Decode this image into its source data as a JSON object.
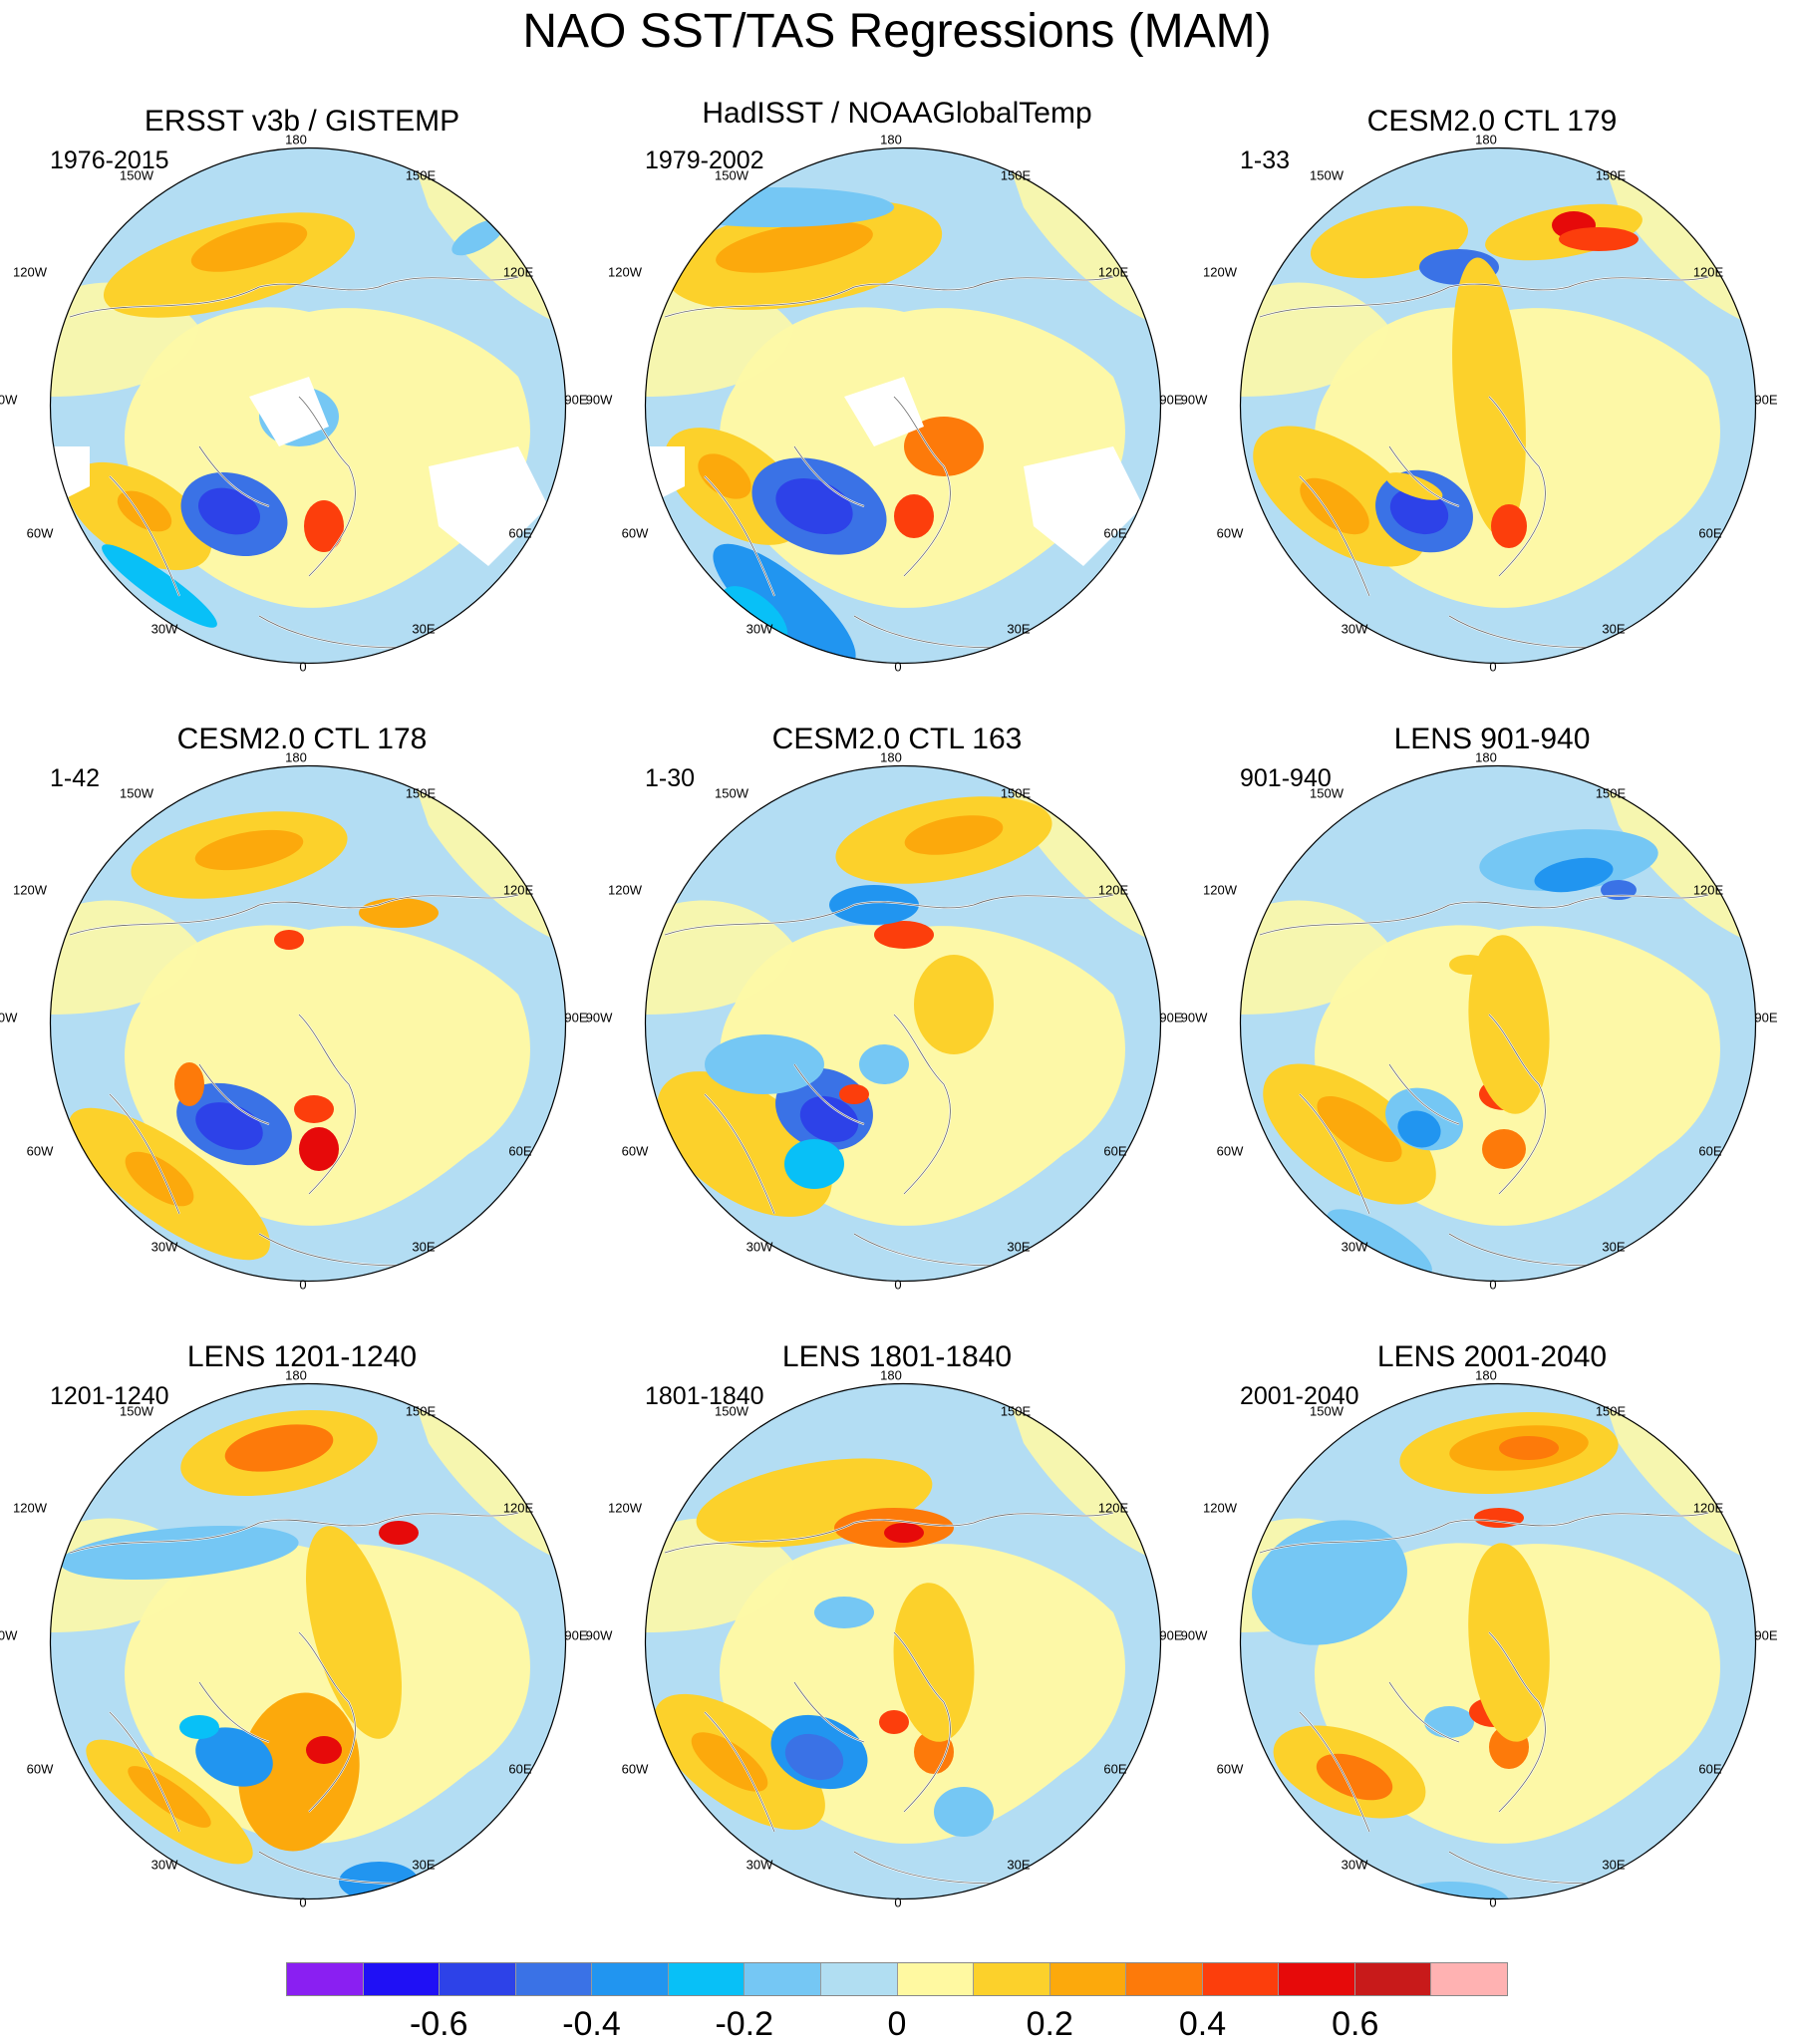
{
  "title": "NAO SST/TAS Regressions (MAM)",
  "chart_data": {
    "type": "heatmap",
    "projection": "polar stereographic (north pole)",
    "variable": "SST/TAS regression onto NAO",
    "season": "MAM",
    "longitude_labels": [
      "180",
      "150E",
      "120E",
      "90E",
      "60E",
      "30E",
      "0",
      "30W",
      "60W",
      "90W",
      "120W",
      "150W"
    ],
    "panels": [
      {
        "title": "ERSST v3b / GISTEMP",
        "period": "1976-2015",
        "missing_data": true
      },
      {
        "title": "HadISST / NOAAGlobalTemp",
        "period": "1979-2002",
        "missing_data": true
      },
      {
        "title": "CESM2.0 CTL 179",
        "period": "1-33",
        "missing_data": false
      },
      {
        "title": "CESM2.0 CTL 178",
        "period": "1-42",
        "missing_data": false
      },
      {
        "title": "CESM2.0 CTL 163",
        "period": "1-30",
        "missing_data": false
      },
      {
        "title": "LENS 901-940",
        "period": "901-940",
        "missing_data": false
      },
      {
        "title": "LENS 1201-1240",
        "period": "1201-1240",
        "missing_data": false
      },
      {
        "title": "LENS 1801-1840",
        "period": "1801-1840",
        "missing_data": false
      },
      {
        "title": "LENS 2001-2040",
        "period": "2001-2040",
        "missing_data": false
      }
    ],
    "colorbar": {
      "levels": [
        -0.7,
        -0.6,
        -0.5,
        -0.4,
        -0.3,
        -0.2,
        -0.1,
        0,
        0.1,
        0.2,
        0.3,
        0.4,
        0.5,
        0.6,
        0.7
      ],
      "tick_labels": [
        "-0.6",
        "-0.4",
        "-0.2",
        "0",
        "0.2",
        "0.4",
        "0.6"
      ],
      "tick_values": [
        -0.6,
        -0.4,
        -0.2,
        0,
        0.2,
        0.4,
        0.6
      ],
      "colors": [
        "#8a1ff2",
        "#1f10f5",
        "#2d42e8",
        "#3a72e6",
        "#2195f0",
        "#08c0f7",
        "#75c7f4",
        "#b1def2",
        "#fff9a1",
        "#fcd12b",
        "#fca90c",
        "#fd7a0a",
        "#fc3e0c",
        "#e60a0a",
        "#c81a1a",
        "#ffb2b2"
      ]
    }
  }
}
